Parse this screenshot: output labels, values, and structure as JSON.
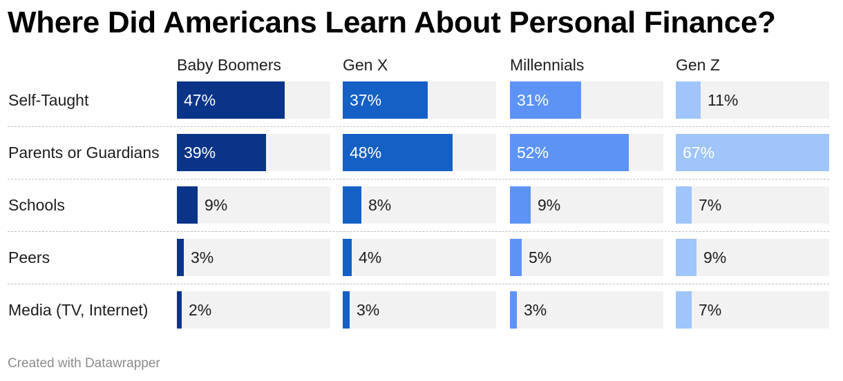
{
  "title": "Where Did Americans Learn About Personal Finance?",
  "footer": "Created with Datawrapper",
  "chart_data": {
    "type": "bar",
    "title": "Where Did Americans Learn About Personal Finance?",
    "categories": [
      "Self-Taught",
      "Parents or Guardians",
      "Schools",
      "Peers",
      "Media (TV, Internet)"
    ],
    "value_format": "{v}%",
    "xlim": [
      0,
      67
    ],
    "grid": false,
    "series": [
      {
        "name": "Baby Boomers",
        "color": "#0a3487",
        "values": [
          47,
          39,
          9,
          3,
          2
        ],
        "labels": [
          "47%",
          "39%",
          "9%",
          "3%",
          "2%"
        ]
      },
      {
        "name": "Gen X",
        "color": "#1560c4",
        "values": [
          37,
          48,
          8,
          4,
          3
        ],
        "labels": [
          "37%",
          "48%",
          "8%",
          "4%",
          "3%"
        ]
      },
      {
        "name": "Millennials",
        "color": "#5d93f5",
        "values": [
          31,
          52,
          9,
          5,
          3
        ],
        "labels": [
          "31%",
          "52%",
          "9%",
          "5%",
          "3%"
        ]
      },
      {
        "name": "Gen Z",
        "color": "#9fc5fb",
        "values": [
          11,
          67,
          7,
          9,
          7
        ],
        "labels": [
          "11%",
          "67%",
          "7%",
          "9%",
          "7%"
        ]
      }
    ]
  }
}
